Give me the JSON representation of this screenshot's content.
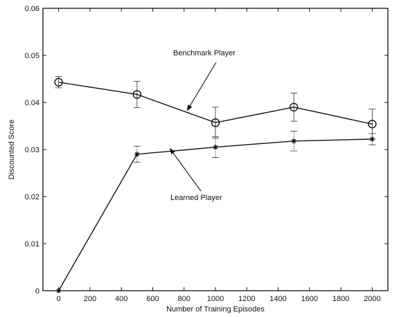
{
  "chart_data": {
    "type": "line",
    "title": "",
    "xlabel": "Number of Training Episodes",
    "ylabel": "Discounted Score",
    "xlim": [
      -100,
      2100
    ],
    "ylim": [
      0,
      0.06
    ],
    "xticks": [
      0,
      200,
      400,
      600,
      800,
      1000,
      1200,
      1400,
      1600,
      1800,
      2000
    ],
    "yticks": [
      0,
      0.01,
      0.02,
      0.03,
      0.04,
      0.05,
      0.06
    ],
    "xtick_labels": [
      "0",
      "200",
      "400",
      "600",
      "800",
      "1000",
      "1200",
      "1400",
      "1600",
      "1800",
      "2000"
    ],
    "ytick_labels": [
      "0",
      "0.01",
      "0.02",
      "0.03",
      "0.04",
      "0.05",
      "0.06"
    ],
    "grid": false,
    "legend": "none",
    "series": [
      {
        "name": "Benchmark Player",
        "marker": "circle",
        "color": "#111111",
        "x": [
          0,
          500,
          1000,
          1500,
          2000
        ],
        "y": [
          0.0443,
          0.0417,
          0.0357,
          0.039,
          0.0354
        ],
        "err": [
          0.0012,
          0.0028,
          0.0033,
          0.003,
          0.0032
        ]
      },
      {
        "name": "Learned Player",
        "marker": "star",
        "color": "#111111",
        "x": [
          0,
          500,
          1000,
          1500,
          2000
        ],
        "y": [
          0.0,
          0.029,
          0.0305,
          0.0318,
          0.0322
        ],
        "err": [
          0.0,
          0.0017,
          0.0022,
          0.0021,
          0.0012
        ]
      }
    ],
    "annotations": [
      {
        "text": "Benchmark Player",
        "target": {
          "x": 820,
          "y": 0.0383
        }
      },
      {
        "text": "Learned Player",
        "target": {
          "x": 710,
          "y": 0.0302
        }
      }
    ]
  }
}
